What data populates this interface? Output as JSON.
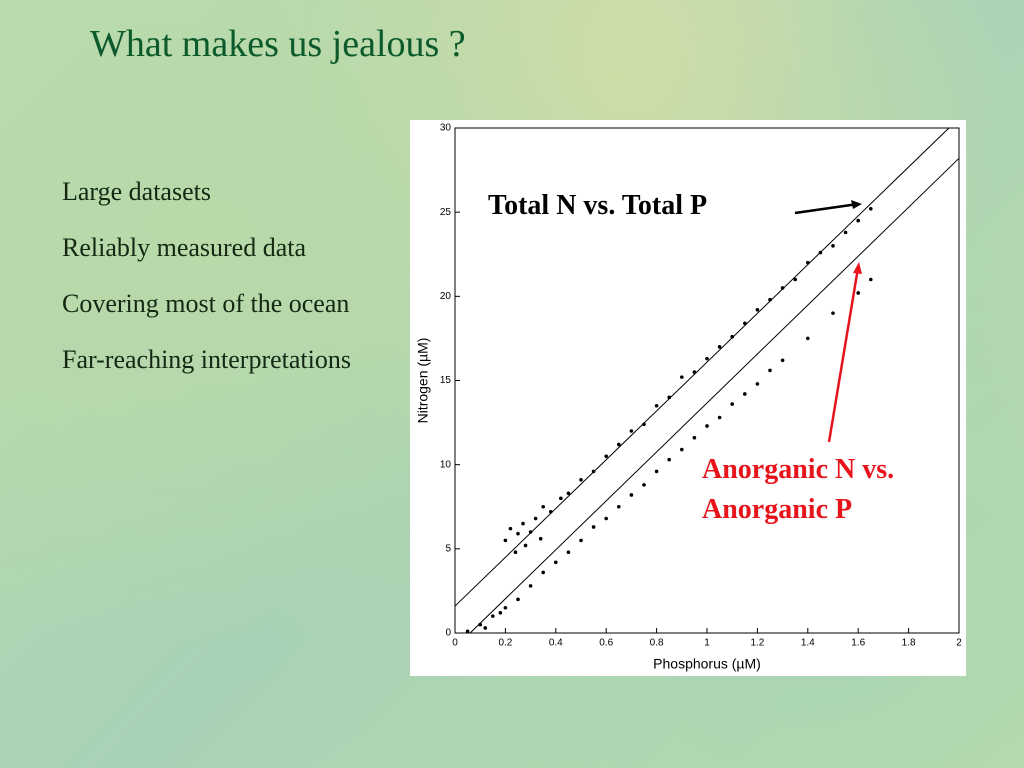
{
  "slide": {
    "title": "What makes us jealous ?",
    "bullets": [
      "Large datasets",
      "Reliably measured data",
      "Covering most of the ocean",
      "Far-reaching interpretations"
    ]
  },
  "chart_data": {
    "type": "scatter",
    "xlabel": "Phosphorus (µM)",
    "ylabel": "Nitrogen (µM)",
    "xlim": [
      0,
      2
    ],
    "ylim": [
      0,
      30
    ],
    "xticks": [
      0,
      0.2,
      0.4,
      0.6,
      0.8,
      1,
      1.2,
      1.4,
      1.6,
      1.8,
      2
    ],
    "yticks": [
      0,
      5,
      10,
      15,
      20,
      25,
      30
    ],
    "color": "#000000",
    "series": [
      {
        "x": [
          0.2,
          0.22,
          0.24,
          0.25,
          0.27,
          0.28,
          0.3,
          0.32,
          0.34,
          0.35,
          0.38,
          0.42,
          0.45,
          0.5,
          0.55,
          0.6,
          0.65,
          0.7,
          0.75,
          0.8,
          0.85,
          0.9,
          0.95,
          1.0,
          1.05,
          1.1,
          1.15,
          1.2,
          1.25,
          1.3,
          1.35,
          1.4,
          1.45,
          1.5,
          1.55,
          1.6,
          1.65
        ],
        "y": [
          5.5,
          6.2,
          4.8,
          5.9,
          6.5,
          5.2,
          6.0,
          6.8,
          5.6,
          7.5,
          7.2,
          8.0,
          8.3,
          9.1,
          9.6,
          10.5,
          11.2,
          12.0,
          12.4,
          13.5,
          14.0,
          15.2,
          15.5,
          16.3,
          17.0,
          17.6,
          18.4,
          19.2,
          19.8,
          20.5,
          21.0,
          22.0,
          22.6,
          23.0,
          23.8,
          24.5,
          25.2
        ]
      },
      {
        "x": [
          0.05,
          0.1,
          0.12,
          0.15,
          0.18,
          0.2,
          0.25,
          0.3,
          0.35,
          0.4,
          0.45,
          0.5,
          0.55,
          0.6,
          0.65,
          0.7,
          0.75,
          0.8,
          0.85,
          0.9,
          0.95,
          1.0,
          1.05,
          1.1,
          1.15,
          1.2,
          1.25,
          1.3,
          1.4,
          1.5,
          1.6,
          1.65
        ],
        "y": [
          0.1,
          0.5,
          0.3,
          1.0,
          1.2,
          1.5,
          2.0,
          2.8,
          3.6,
          4.2,
          4.8,
          5.5,
          6.3,
          6.8,
          7.5,
          8.2,
          8.8,
          9.6,
          10.3,
          10.9,
          11.6,
          12.3,
          12.8,
          13.6,
          14.2,
          14.8,
          15.6,
          16.2,
          17.5,
          19.0,
          20.2,
          21.0
        ]
      }
    ],
    "lines": [
      {
        "x": [
          0,
          1.96
        ],
        "y": [
          1.6,
          30
        ]
      },
      {
        "x": [
          0.06,
          2
        ],
        "y": [
          0,
          28.2
        ]
      }
    ],
    "annotations": [
      {
        "text": "Total N vs. Total P",
        "color": "#000000"
      },
      {
        "text": "Anorganic N vs. Anorganic P",
        "color": "#e8141c"
      }
    ]
  }
}
